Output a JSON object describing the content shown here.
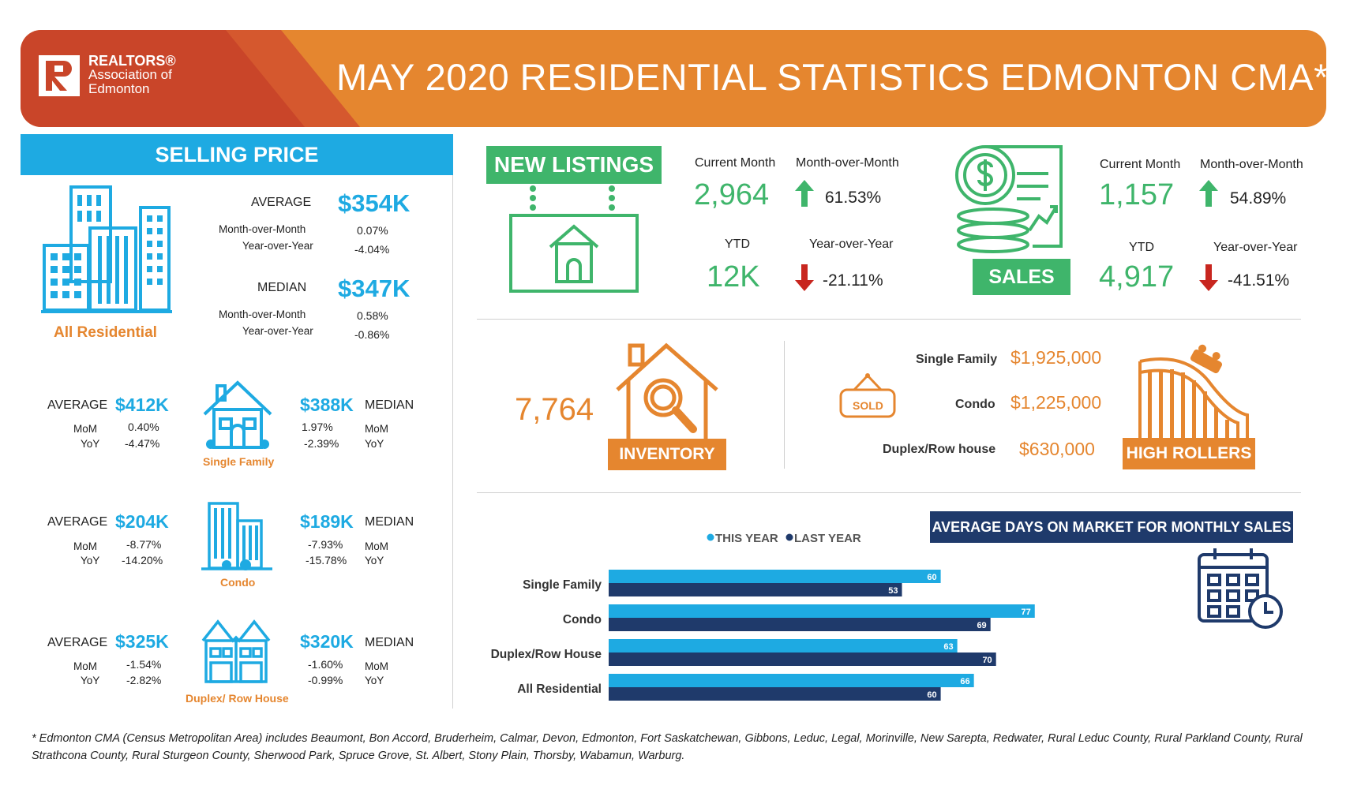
{
  "header": {
    "logo_line1": "REALTORS®",
    "logo_line2": "Association of",
    "logo_line3": "Edmonton",
    "title": "MAY 2020 RESIDENTIAL STATISTICS EDMONTON CMA*"
  },
  "selling_price": {
    "title": "SELLING PRICE",
    "all_residential": {
      "label": "All Residential",
      "average_label": "AVERAGE",
      "average_value": "$354K",
      "avg_mom_label": "Month-over-Month",
      "avg_mom": "0.07%",
      "avg_yoy_label": "Year-over-Year",
      "avg_yoy": "-4.04%",
      "median_label": "MEDIAN",
      "median_value": "$347K",
      "med_mom_label": "Month-over-Month",
      "med_mom": "0.58%",
      "med_yoy_label": "Year-over-Year",
      "med_yoy": "-0.86%"
    },
    "types": [
      {
        "label": "Single Family",
        "average_label": "AVERAGE",
        "average": "$412K",
        "avg_mom": "0.40%",
        "avg_yoy": "-4.47%",
        "median_label": "MEDIAN",
        "median": "$388K",
        "med_mom": "1.97%",
        "med_yoy": "-2.39%",
        "mom_label": "MoM",
        "yoy_label": "YoY"
      },
      {
        "label": "Condo",
        "average_label": "AVERAGE",
        "average": "$204K",
        "avg_mom": "-8.77%",
        "avg_yoy": "-14.20%",
        "median_label": "MEDIAN",
        "median": "$189K",
        "med_mom": "-7.93%",
        "med_yoy": "-15.78%",
        "mom_label": "MoM",
        "yoy_label": "YoY"
      },
      {
        "label": "Duplex/ Row House",
        "average_label": "AVERAGE",
        "average": "$325K",
        "avg_mom": "-1.54%",
        "avg_yoy": "-2.82%",
        "median_label": "MEDIAN",
        "median": "$320K",
        "med_mom": "-1.60%",
        "med_yoy": "-0.99%",
        "mom_label": "MoM",
        "yoy_label": "YoY"
      }
    ]
  },
  "new_listings": {
    "title": "NEW  LISTINGS",
    "current_month_label": "Current Month",
    "current_month": "2,964",
    "mom_label": "Month-over-Month",
    "mom": "61.53%",
    "ytd_label": "YTD",
    "ytd": "12K",
    "yoy_label": "Year-over-Year",
    "yoy": "-21.11%"
  },
  "sales": {
    "title": "SALES",
    "current_month_label": "Current Month",
    "current_month": "1,157",
    "mom_label": "Month-over-Month",
    "mom": "54.89%",
    "ytd_label": "YTD",
    "ytd": "4,917",
    "yoy_label": "Year-over-Year",
    "yoy": "-41.51%"
  },
  "inventory": {
    "value": "7,764",
    "label": "INVENTORY"
  },
  "high_rollers": {
    "sold_sign": "SOLD",
    "label": "HIGH ROLLERS",
    "items": [
      {
        "type": "Single Family",
        "price": "$1,925,000"
      },
      {
        "type": "Condo",
        "price": "$1,225,000"
      },
      {
        "type": "Duplex/Row house",
        "price": "$630,000"
      }
    ]
  },
  "chart_data": {
    "type": "bar",
    "orientation": "horizontal",
    "title": "AVERAGE DAYS ON MARKET FOR MONTHLY SALES",
    "categories": [
      "Single Family",
      "Condo",
      "Duplex/Row House",
      "All Residential"
    ],
    "series": [
      {
        "name": "THIS YEAR",
        "values": [
          60,
          77,
          63,
          66
        ],
        "color": "#1eaae2"
      },
      {
        "name": "LAST YEAR",
        "values": [
          53,
          69,
          70,
          60
        ],
        "color": "#1f3a6b"
      }
    ],
    "xlim": [
      0,
      100
    ],
    "grid": false,
    "legend": "top"
  },
  "footer": "* Edmonton CMA (Census Metropolitan Area) includes Beaumont, Bon Accord, Bruderheim, Calmar, Devon, Edmonton, Fort Saskatchewan, Gibbons, Leduc, Legal, Morinville, New Sarepta, Redwater, Rural Leduc County, Rural Parkland County, Rural Strathcona County, Rural Sturgeon County, Sherwood Park, Spruce Grove, St. Albert, Stony Plain, Thorsby, Wabamun, Warburg.",
  "colors": {
    "orange": "#e5862f",
    "red": "#c94529",
    "blue": "#1eaae2",
    "navy": "#1f3a6b",
    "green": "#3fb56b",
    "arrow_red": "#c8261f"
  }
}
